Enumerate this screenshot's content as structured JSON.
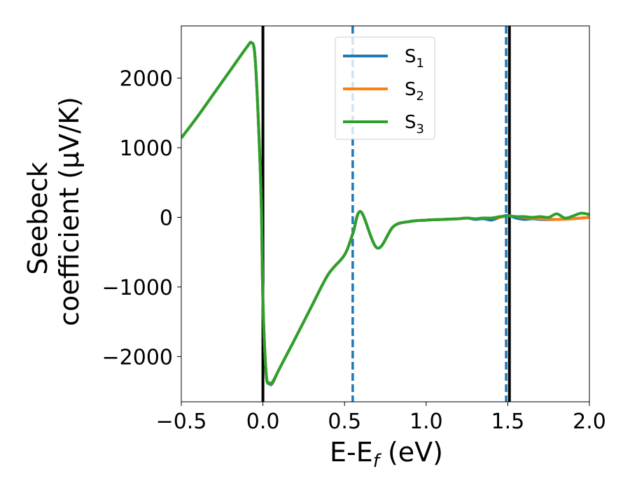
{
  "chart_data": {
    "type": "line",
    "xlabel": "E-E_f (eV)",
    "ylabel_line1": "Seebeck",
    "ylabel_line2": "coefficient  (μV/K)",
    "xlim": [
      -0.5,
      2.0
    ],
    "ylim": [
      -2650,
      2750
    ],
    "x_ticks": [
      -0.5,
      0.0,
      0.5,
      1.0,
      1.5,
      2.0
    ],
    "x_tick_labels": [
      "−0.5",
      "0.0",
      "0.5",
      "1.0",
      "1.5",
      "2.0"
    ],
    "y_ticks": [
      -2000,
      -1000,
      0,
      1000,
      2000
    ],
    "y_tick_labels": [
      "−2000",
      "−1000",
      "0",
      "1000",
      "2000"
    ],
    "grid": false,
    "legend_position": "upper-center",
    "vertical_lines": [
      {
        "x": 0.0,
        "style": "solid",
        "color": "#000000"
      },
      {
        "x": 1.51,
        "style": "solid",
        "color": "#000000"
      },
      {
        "x": 0.55,
        "style": "dashed",
        "color": "#1f77b4"
      },
      {
        "x": 1.49,
        "style": "dashed",
        "color": "#1f77b4"
      }
    ],
    "series": [
      {
        "name": "S1",
        "color": "#1f77b4",
        "x": [
          -0.5,
          -0.4,
          -0.3,
          -0.2,
          -0.1,
          -0.07,
          -0.05,
          -0.03,
          -0.01,
          0.0,
          0.02,
          0.04,
          0.06,
          0.1,
          0.2,
          0.3,
          0.4,
          0.5,
          0.55,
          0.6,
          0.7,
          0.8,
          0.9,
          1.0,
          1.1,
          1.2,
          1.25,
          1.3,
          1.35,
          1.4,
          1.45,
          1.5,
          1.55,
          1.6,
          1.65,
          1.7,
          1.8,
          1.9,
          2.0
        ],
        "y": [
          1140,
          1450,
          1780,
          2110,
          2440,
          2510,
          2350,
          1500,
          200,
          -1200,
          -2250,
          -2390,
          -2380,
          -2180,
          -1730,
          -1270,
          -820,
          -540,
          -240,
          80,
          -440,
          -130,
          -60,
          -40,
          -30,
          -20,
          -10,
          -30,
          -20,
          -40,
          0,
          30,
          -10,
          -30,
          -20,
          -30,
          -30,
          -20,
          0
        ]
      },
      {
        "name": "S2",
        "color": "#ff7f0e",
        "x": [
          -0.5,
          -0.4,
          -0.3,
          -0.2,
          -0.1,
          -0.07,
          -0.05,
          -0.03,
          -0.01,
          0.0,
          0.02,
          0.04,
          0.06,
          0.1,
          0.2,
          0.3,
          0.4,
          0.5,
          0.55,
          0.6,
          0.7,
          0.8,
          0.9,
          1.0,
          1.1,
          1.2,
          1.25,
          1.3,
          1.35,
          1.4,
          1.45,
          1.5,
          1.55,
          1.6,
          1.65,
          1.7,
          1.8,
          1.9,
          2.0
        ],
        "y": [
          1140,
          1450,
          1780,
          2110,
          2440,
          2510,
          2350,
          1500,
          200,
          -1200,
          -2250,
          -2380,
          -2370,
          -2180,
          -1730,
          -1270,
          -820,
          -540,
          -240,
          80,
          -440,
          -130,
          -60,
          -40,
          -30,
          -20,
          -10,
          -20,
          -10,
          -10,
          0,
          20,
          10,
          0,
          -10,
          -20,
          -30,
          -20,
          0
        ]
      },
      {
        "name": "S3",
        "color": "#2ca02c",
        "x": [
          -0.5,
          -0.4,
          -0.3,
          -0.2,
          -0.1,
          -0.07,
          -0.05,
          -0.03,
          -0.01,
          0.0,
          0.02,
          0.04,
          0.06,
          0.1,
          0.2,
          0.3,
          0.4,
          0.5,
          0.55,
          0.6,
          0.7,
          0.8,
          0.9,
          1.0,
          1.1,
          1.2,
          1.25,
          1.3,
          1.35,
          1.4,
          1.45,
          1.5,
          1.55,
          1.6,
          1.65,
          1.7,
          1.75,
          1.8,
          1.85,
          1.9,
          1.95,
          2.0
        ],
        "y": [
          1140,
          1450,
          1780,
          2110,
          2440,
          2510,
          2350,
          1500,
          200,
          -1200,
          -2250,
          -2380,
          -2360,
          -2180,
          -1730,
          -1270,
          -820,
          -540,
          -240,
          80,
          -440,
          -130,
          -60,
          -40,
          -30,
          -20,
          -10,
          -20,
          -10,
          -10,
          10,
          20,
          10,
          10,
          0,
          10,
          0,
          50,
          -10,
          20,
          60,
          40
        ]
      }
    ],
    "legend": [
      {
        "base": "S",
        "sub": "1"
      },
      {
        "base": "S",
        "sub": "2"
      },
      {
        "base": "S",
        "sub": "3"
      }
    ]
  }
}
